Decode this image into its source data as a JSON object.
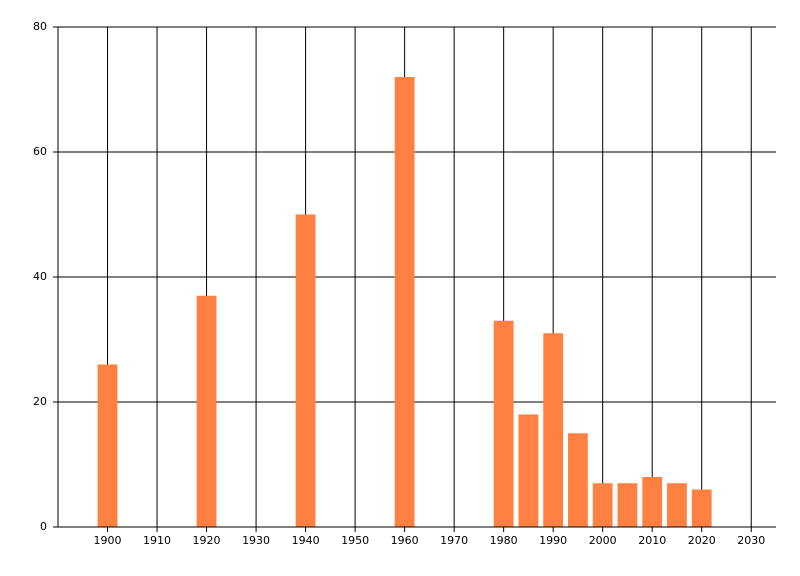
{
  "chart_data": {
    "type": "bar",
    "x": [
      1900,
      1920,
      1940,
      1960,
      1980,
      1985,
      1990,
      1995,
      2000,
      2005,
      2010,
      2015,
      2020
    ],
    "values": [
      26,
      37,
      50,
      72,
      33,
      18,
      31,
      15,
      7,
      7,
      8,
      7,
      6
    ],
    "color": "#ff8040",
    "xlim": [
      1890,
      2035
    ],
    "xticks": [
      1900,
      1910,
      1920,
      1930,
      1940,
      1950,
      1960,
      1970,
      1980,
      1990,
      2000,
      2010,
      2020,
      2030
    ],
    "ylim": [
      0,
      80
    ],
    "yticks": [
      0,
      20,
      40,
      60,
      80
    ],
    "grid": true
  }
}
